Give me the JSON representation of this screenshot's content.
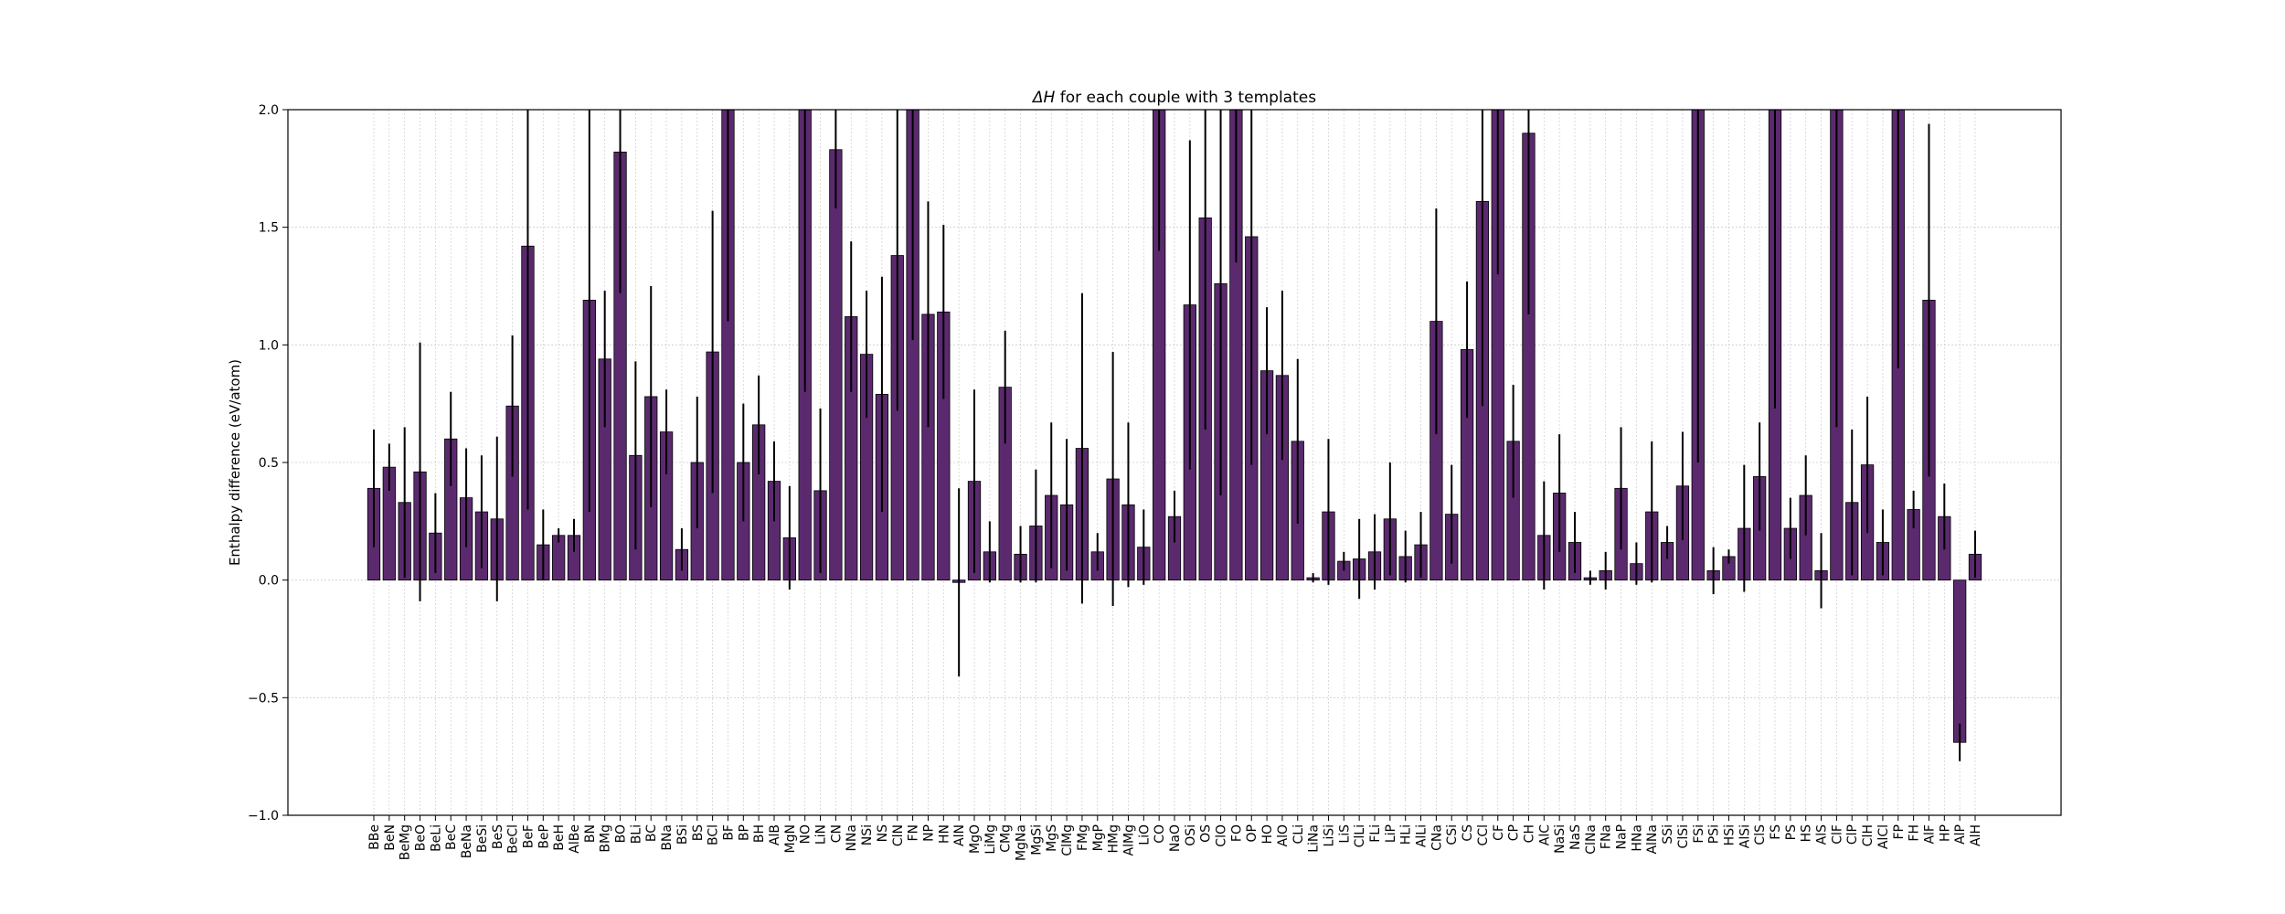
{
  "chart_data": {
    "type": "bar",
    "title_symbol": "ΔH",
    "title_rest": " for each couple with 3 templates",
    "xlabel": "",
    "ylabel": "Enthalpy difference (eV/atom)",
    "ylim": [
      -1.0,
      2.0
    ],
    "yticks": [
      -1.0,
      -0.5,
      0.0,
      0.5,
      1.0,
      1.5,
      2.0
    ],
    "ytick_labels": [
      "−1.0",
      "−0.5",
      "0.0",
      "0.5",
      "1.0",
      "1.5",
      "2.0"
    ],
    "grid": true,
    "bar_color": "#5b2a6e",
    "bar_edge_color": "#000000",
    "error_color": "#000000",
    "grid_color": "#cccccc",
    "categories": [
      "BBe",
      "BeN",
      "BeMg",
      "BeO",
      "BeLi",
      "BeC",
      "BeNa",
      "BeSi",
      "BeS",
      "BeCl",
      "BeF",
      "BeP",
      "BeH",
      "AlBe",
      "BN",
      "BMg",
      "BO",
      "BLi",
      "BC",
      "BNa",
      "BSi",
      "BS",
      "BCl",
      "BF",
      "BP",
      "BH",
      "AlB",
      "MgN",
      "NO",
      "LiN",
      "CN",
      "NNa",
      "NSi",
      "NS",
      "ClN",
      "FN",
      "NP",
      "HN",
      "AlN",
      "MgO",
      "LiMg",
      "CMg",
      "MgNa",
      "MgSi",
      "MgS",
      "ClMg",
      "FMg",
      "MgP",
      "HMg",
      "AlMg",
      "LiO",
      "CO",
      "NaO",
      "OSi",
      "OS",
      "ClO",
      "FO",
      "OP",
      "HO",
      "AlO",
      "CLi",
      "LiNa",
      "LiSi",
      "LiS",
      "ClLi",
      "FLi",
      "LiP",
      "HLi",
      "AlLi",
      "CNa",
      "CSi",
      "CS",
      "CCl",
      "CF",
      "CP",
      "CH",
      "AlC",
      "NaSi",
      "NaS",
      "ClNa",
      "FNa",
      "NaP",
      "HNa",
      "AlNa",
      "SSi",
      "ClSi",
      "FSi",
      "PSi",
      "HSi",
      "AlSi",
      "ClS",
      "FS",
      "PS",
      "HS",
      "AlS",
      "ClF",
      "ClP",
      "ClH",
      "AlCl",
      "FP",
      "FH",
      "AlF",
      "HP",
      "AlP",
      "AlH"
    ],
    "values": [
      0.39,
      0.48,
      0.33,
      0.46,
      0.2,
      0.6,
      0.35,
      0.29,
      0.26,
      0.74,
      1.42,
      0.15,
      0.19,
      0.19,
      1.19,
      0.94,
      1.82,
      0.53,
      0.78,
      0.63,
      0.13,
      0.5,
      0.97,
      2.0,
      0.5,
      0.66,
      0.42,
      0.18,
      2.0,
      0.38,
      1.83,
      1.12,
      0.96,
      0.79,
      1.38,
      2.0,
      1.13,
      1.14,
      -0.01,
      0.42,
      0.12,
      0.82,
      0.11,
      0.23,
      0.36,
      0.32,
      0.56,
      0.12,
      0.43,
      0.32,
      0.14,
      2.0,
      0.27,
      1.17,
      1.54,
      1.26,
      2.0,
      1.46,
      0.89,
      0.87,
      0.59,
      0.01,
      0.29,
      0.08,
      0.09,
      0.12,
      0.26,
      0.1,
      0.15,
      1.1,
      0.28,
      0.98,
      1.61,
      2.0,
      0.59,
      1.9,
      0.19,
      0.37,
      0.16,
      0.01,
      0.04,
      0.39,
      0.07,
      0.29,
      0.16,
      0.4,
      2.0,
      0.04,
      0.1,
      0.22,
      0.44,
      2.0,
      0.22,
      0.36,
      0.04,
      2.0,
      0.33,
      0.49,
      0.16,
      2.0,
      0.3,
      1.19,
      0.27,
      -0.69,
      0.11
    ],
    "errors": [
      0.25,
      0.1,
      0.32,
      0.55,
      0.17,
      0.2,
      0.21,
      0.24,
      0.35,
      0.3,
      1.12,
      0.15,
      0.03,
      0.07,
      0.9,
      0.29,
      0.6,
      0.4,
      0.47,
      0.18,
      0.09,
      0.28,
      0.6,
      0.9,
      0.25,
      0.21,
      0.17,
      0.22,
      1.2,
      0.35,
      0.25,
      0.32,
      0.27,
      0.5,
      0.66,
      0.98,
      0.48,
      0.37,
      0.4,
      0.39,
      0.13,
      0.24,
      0.12,
      0.24,
      0.31,
      0.28,
      0.66,
      0.08,
      0.54,
      0.35,
      0.16,
      0.6,
      0.11,
      0.7,
      0.9,
      0.9,
      0.65,
      0.97,
      0.27,
      0.36,
      0.35,
      0.02,
      0.31,
      0.04,
      0.17,
      0.16,
      0.24,
      0.11,
      0.14,
      0.48,
      0.21,
      0.29,
      0.87,
      0.7,
      0.24,
      0.77,
      0.23,
      0.25,
      0.13,
      0.03,
      0.08,
      0.26,
      0.09,
      0.3,
      0.07,
      0.23,
      1.5,
      0.1,
      0.03,
      0.27,
      0.23,
      1.27,
      0.13,
      0.17,
      0.16,
      1.35,
      0.31,
      0.29,
      0.14,
      1.1,
      0.08,
      0.75,
      0.14,
      0.08,
      0.1
    ]
  }
}
